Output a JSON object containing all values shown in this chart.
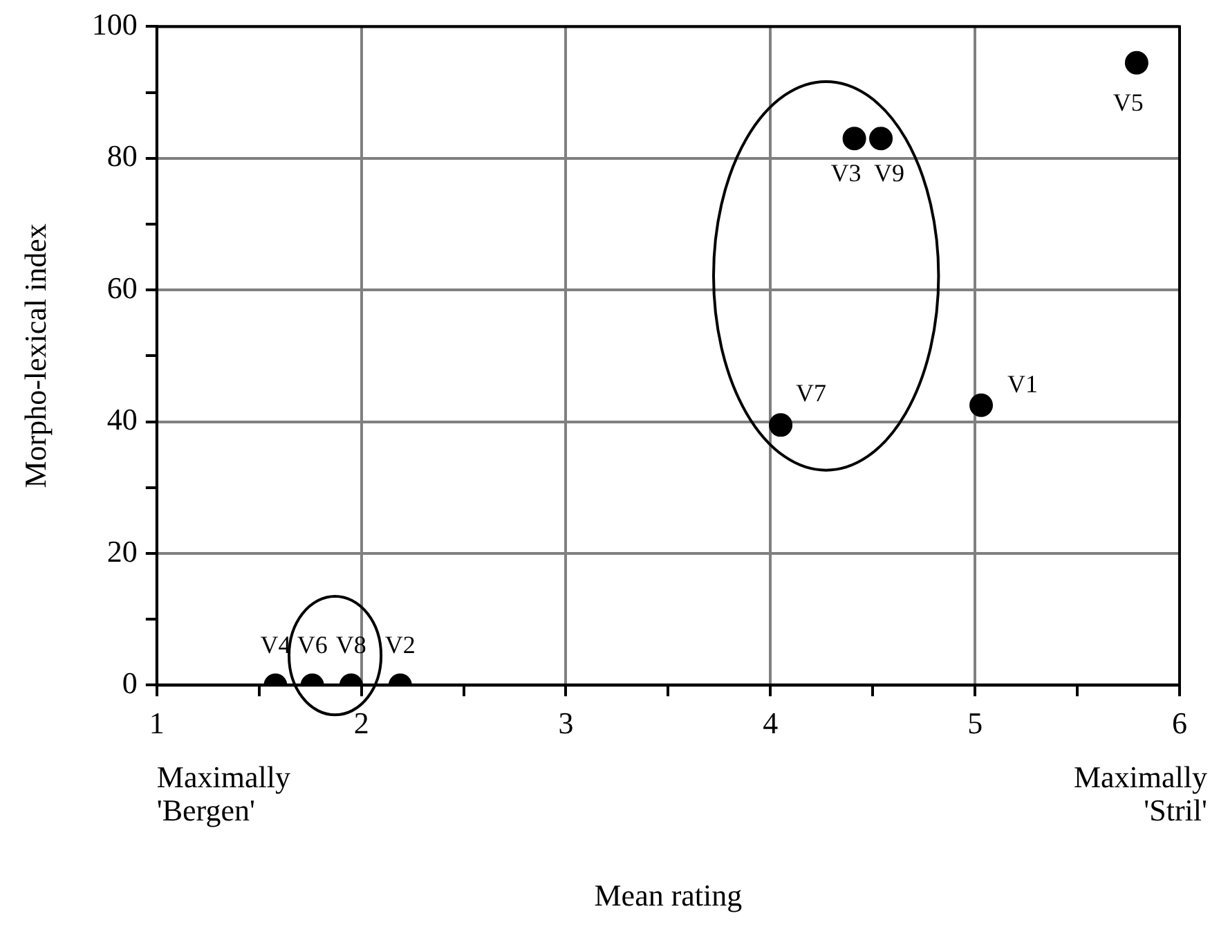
{
  "chart_data": {
    "type": "scatter",
    "xlabel": "Mean rating",
    "ylabel": "Morpho-lexical index",
    "xlim": [
      1,
      6
    ],
    "ylim": [
      0,
      100
    ],
    "xticks": [
      1,
      {
        "value": 1.5,
        "label": null
      },
      2,
      {
        "value": 2.5,
        "label": null
      },
      3,
      {
        "value": 3.5,
        "label": null
      },
      4,
      {
        "value": 4.5,
        "label": null
      },
      5,
      {
        "value": 5.5,
        "label": null
      },
      6
    ],
    "yticks": [
      0,
      {
        "value": 10,
        "label": null
      },
      20,
      {
        "value": 30,
        "label": null
      },
      40,
      {
        "value": 50,
        "label": null
      },
      60,
      {
        "value": 70,
        "label": null
      },
      80,
      {
        "value": 90,
        "label": null
      },
      100
    ],
    "grid": true,
    "legend": false,
    "marker": "circle",
    "annotations": [
      "Maximally\n'Bergen'",
      "Maximally\n'Stril'"
    ],
    "series": [
      {
        "name": "V4",
        "color": "#000000",
        "x": [
          1.58
        ],
        "values": [
          0
        ]
      },
      {
        "name": "V6",
        "color": "#000000",
        "x": [
          1.76
        ],
        "values": [
          0
        ]
      },
      {
        "name": "V8",
        "color": "#000000",
        "x": [
          1.95
        ],
        "values": [
          0
        ]
      },
      {
        "name": "V2",
        "color": "#000000",
        "x": [
          2.19
        ],
        "values": [
          0
        ]
      },
      {
        "name": "V7",
        "color": "#000000",
        "x": [
          4.05
        ],
        "values": [
          39.5
        ]
      },
      {
        "name": "V3",
        "color": "#000000",
        "x": [
          4.41
        ],
        "values": [
          83
        ]
      },
      {
        "name": "V9",
        "color": "#000000",
        "x": [
          4.54
        ],
        "values": [
          83
        ]
      },
      {
        "name": "V1",
        "color": "#000000",
        "x": [
          5.03
        ],
        "values": [
          42.5
        ]
      },
      {
        "name": "V5",
        "color": "#000000",
        "x": [
          5.79
        ],
        "values": [
          94.5
        ]
      }
    ]
  }
}
